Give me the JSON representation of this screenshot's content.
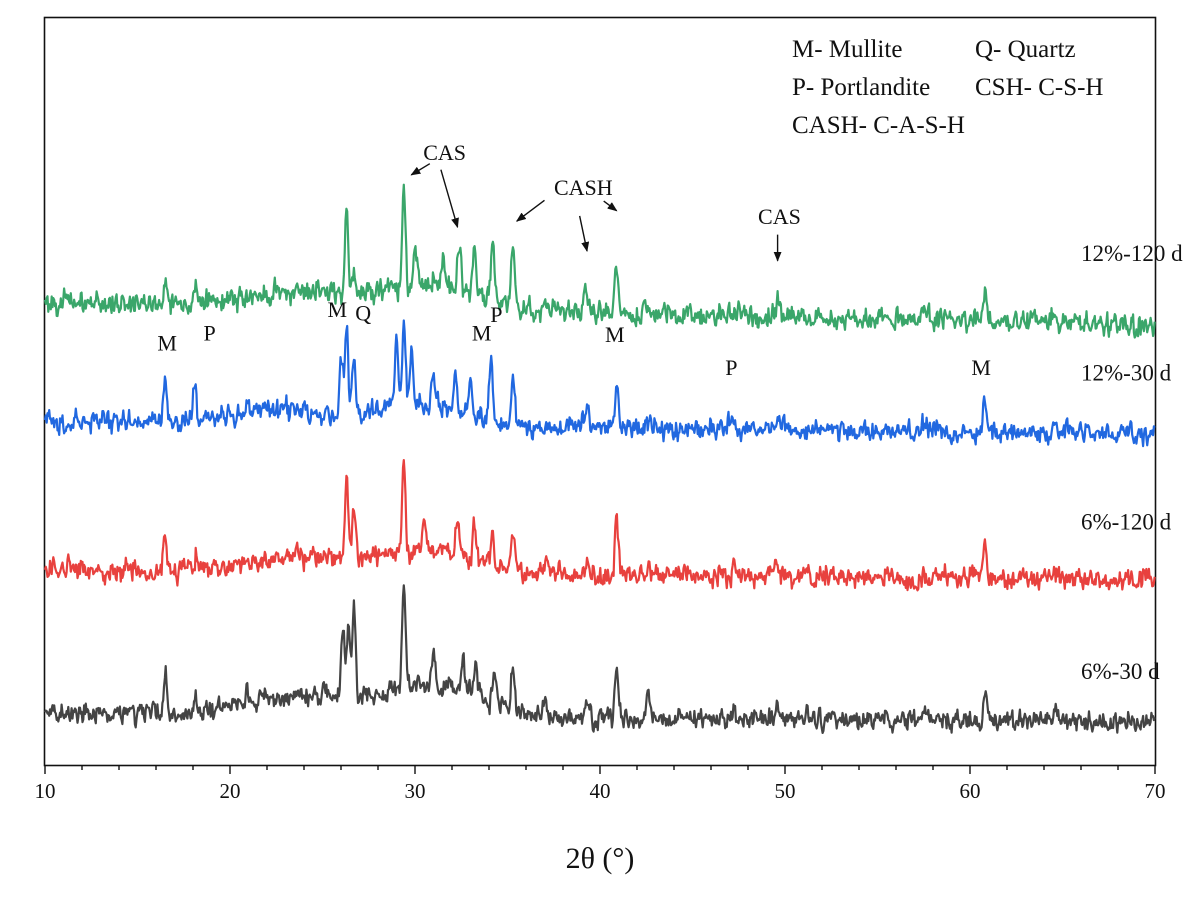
{
  "chart_data": {
    "type": "line",
    "title": "",
    "xlabel": "2θ (°)",
    "ylabel": "",
    "xlim": [
      10,
      70
    ],
    "x_ticks": [
      10,
      20,
      30,
      40,
      50,
      60,
      70
    ],
    "x_tick_labels": [
      "10",
      "20",
      "30",
      "40",
      "50",
      "60",
      "70"
    ],
    "ylim": [
      0,
      100
    ],
    "y_ticks_shown": false,
    "grid": false,
    "legend": {
      "placement": "top-right",
      "lines": [
        "M- Mullite",
        "Q- Quartz",
        "P- Portlandite",
        "CSH- C-S-H",
        "CASH- C-A-S-H"
      ]
    },
    "series": [
      {
        "name": "12%-120 d",
        "color": "#3aa66a",
        "baseline": 62,
        "slope": -0.05,
        "noise": 1.4,
        "peaks": [
          {
            "x": 16.5,
            "h": 3.5
          },
          {
            "x": 18.1,
            "h": 3.0
          },
          {
            "x": 21.5,
            "h": 1.0
          },
          {
            "x": 26.3,
            "h": 12.0
          },
          {
            "x": 26.7,
            "h": 3.0
          },
          {
            "x": 29.4,
            "h": 13.5
          },
          {
            "x": 30.0,
            "h": 5.0
          },
          {
            "x": 31.5,
            "h": 3.0
          },
          {
            "x": 32.4,
            "h": 6.0
          },
          {
            "x": 33.2,
            "h": 6.5
          },
          {
            "x": 34.2,
            "h": 9.0
          },
          {
            "x": 35.3,
            "h": 8.0
          },
          {
            "x": 37.0,
            "h": 2.0
          },
          {
            "x": 39.2,
            "h": 4.0
          },
          {
            "x": 40.9,
            "h": 7.5
          },
          {
            "x": 42.5,
            "h": 1.5
          },
          {
            "x": 47.0,
            "h": 2.0
          },
          {
            "x": 49.6,
            "h": 2.5
          },
          {
            "x": 57.5,
            "h": 1.5
          },
          {
            "x": 60.8,
            "h": 3.5
          },
          {
            "x": 64.5,
            "h": 1.5
          }
        ],
        "humps": [
          {
            "x": 24,
            "h": 2.0,
            "w": 4
          },
          {
            "x": 31,
            "h": 3.5,
            "w": 3.5
          }
        ]
      },
      {
        "name": "12%-30 d",
        "color": "#2168e0",
        "baseline": 46,
        "slope": -0.03,
        "noise": 1.3,
        "peaks": [
          {
            "x": 16.5,
            "h": 5.5
          },
          {
            "x": 18.1,
            "h": 5.0
          },
          {
            "x": 20.9,
            "h": 1.5
          },
          {
            "x": 26.0,
            "h": 8.0
          },
          {
            "x": 26.3,
            "h": 12.0
          },
          {
            "x": 26.7,
            "h": 8.0
          },
          {
            "x": 29.0,
            "h": 9.0
          },
          {
            "x": 29.4,
            "h": 11.0
          },
          {
            "x": 29.8,
            "h": 8.0
          },
          {
            "x": 31.0,
            "h": 4.0
          },
          {
            "x": 32.2,
            "h": 5.0
          },
          {
            "x": 33.0,
            "h": 4.0
          },
          {
            "x": 34.1,
            "h": 8.5
          },
          {
            "x": 35.3,
            "h": 6.0
          },
          {
            "x": 39.3,
            "h": 3.0
          },
          {
            "x": 40.9,
            "h": 6.5
          },
          {
            "x": 42.7,
            "h": 1.5
          },
          {
            "x": 47.1,
            "h": 3.0
          },
          {
            "x": 49.6,
            "h": 2.0
          },
          {
            "x": 57.5,
            "h": 1.5
          },
          {
            "x": 60.8,
            "h": 4.0
          },
          {
            "x": 64.6,
            "h": 2.0
          }
        ],
        "humps": [
          {
            "x": 23,
            "h": 2.0,
            "w": 4
          },
          {
            "x": 30.5,
            "h": 3.0,
            "w": 3
          }
        ]
      },
      {
        "name": "6%-120 d",
        "color": "#e8413e",
        "baseline": 26,
        "slope": -0.02,
        "noise": 1.3,
        "peaks": [
          {
            "x": 16.5,
            "h": 5.0
          },
          {
            "x": 18.2,
            "h": 2.5
          },
          {
            "x": 23.6,
            "h": 1.5
          },
          {
            "x": 26.3,
            "h": 11.0
          },
          {
            "x": 26.7,
            "h": 6.5
          },
          {
            "x": 29.4,
            "h": 13.0
          },
          {
            "x": 30.5,
            "h": 4.0
          },
          {
            "x": 32.3,
            "h": 5.0
          },
          {
            "x": 33.2,
            "h": 5.5
          },
          {
            "x": 34.2,
            "h": 4.0
          },
          {
            "x": 35.3,
            "h": 5.5
          },
          {
            "x": 37.1,
            "h": 1.5
          },
          {
            "x": 39.3,
            "h": 2.0
          },
          {
            "x": 40.9,
            "h": 7.5
          },
          {
            "x": 42.6,
            "h": 2.0
          },
          {
            "x": 47.2,
            "h": 1.5
          },
          {
            "x": 49.5,
            "h": 2.0
          },
          {
            "x": 60.8,
            "h": 4.0
          },
          {
            "x": 64.5,
            "h": 1.5
          }
        ],
        "humps": [
          {
            "x": 24,
            "h": 2.0,
            "w": 4
          },
          {
            "x": 31,
            "h": 3.0,
            "w": 3.5
          }
        ]
      },
      {
        "name": "6%-30 d",
        "color": "#444444",
        "baseline": 7,
        "slope": -0.02,
        "noise": 1.3,
        "peaks": [
          {
            "x": 16.5,
            "h": 5.0
          },
          {
            "x": 18.1,
            "h": 2.5
          },
          {
            "x": 20.9,
            "h": 1.5
          },
          {
            "x": 26.1,
            "h": 9.0
          },
          {
            "x": 26.4,
            "h": 10.0
          },
          {
            "x": 26.7,
            "h": 12.0
          },
          {
            "x": 29.4,
            "h": 14.0
          },
          {
            "x": 31.0,
            "h": 5.0
          },
          {
            "x": 32.6,
            "h": 5.0
          },
          {
            "x": 33.3,
            "h": 4.5
          },
          {
            "x": 34.3,
            "h": 5.0
          },
          {
            "x": 35.3,
            "h": 6.0
          },
          {
            "x": 37.0,
            "h": 1.5
          },
          {
            "x": 39.3,
            "h": 2.0
          },
          {
            "x": 40.9,
            "h": 6.5
          },
          {
            "x": 42.6,
            "h": 3.0
          },
          {
            "x": 47.2,
            "h": 1.5
          },
          {
            "x": 49.6,
            "h": 2.5
          },
          {
            "x": 57.6,
            "h": 1.5
          },
          {
            "x": 60.8,
            "h": 4.0
          },
          {
            "x": 64.6,
            "h": 1.5
          }
        ],
        "humps": [
          {
            "x": 24,
            "h": 2.5,
            "w": 4
          },
          {
            "x": 31,
            "h": 4.0,
            "w": 3.5
          }
        ]
      }
    ],
    "series_labels": [
      {
        "text": "12%-120 d",
        "x": 66.0,
        "y": 67.5
      },
      {
        "text": "12%-30 d",
        "x": 66.0,
        "y": 51.5
      },
      {
        "text": "6%-120 d",
        "x": 66.0,
        "y": 31.5
      },
      {
        "text": "6%-30 d",
        "x": 66.0,
        "y": 11.5
      }
    ],
    "peak_labels": [
      {
        "text": "M",
        "x": 16.6,
        "y": 55.5
      },
      {
        "text": "P",
        "x": 18.9,
        "y": 56.8
      },
      {
        "text": "M",
        "x": 25.8,
        "y": 60.0
      },
      {
        "text": "Q",
        "x": 27.2,
        "y": 59.5
      },
      {
        "text": "M",
        "x": 33.6,
        "y": 56.8
      },
      {
        "text": "P",
        "x": 34.4,
        "y": 59.3
      },
      {
        "text": "M",
        "x": 40.8,
        "y": 56.6
      },
      {
        "text": "P",
        "x": 47.1,
        "y": 52.2
      },
      {
        "text": "M",
        "x": 60.6,
        "y": 52.2
      },
      {
        "text": "CAS",
        "x": 31.6,
        "y": 81.0
      },
      {
        "text": "CASH",
        "x": 39.1,
        "y": 76.3
      },
      {
        "text": "CAS",
        "x": 49.7,
        "y": 72.4
      }
    ],
    "arrows": [
      {
        "from": [
          30.8,
          80.5
        ],
        "to": [
          29.8,
          79.0
        ]
      },
      {
        "from": [
          31.4,
          79.7
        ],
        "to": [
          32.3,
          72.0
        ]
      },
      {
        "from": [
          37.0,
          75.6
        ],
        "to": [
          35.5,
          72.8
        ]
      },
      {
        "from": [
          38.9,
          73.5
        ],
        "to": [
          39.3,
          68.8
        ]
      },
      {
        "from": [
          40.2,
          75.5
        ],
        "to": [
          40.9,
          74.2
        ]
      },
      {
        "from": [
          49.6,
          71.0
        ],
        "to": [
          49.6,
          67.5
        ]
      }
    ]
  }
}
